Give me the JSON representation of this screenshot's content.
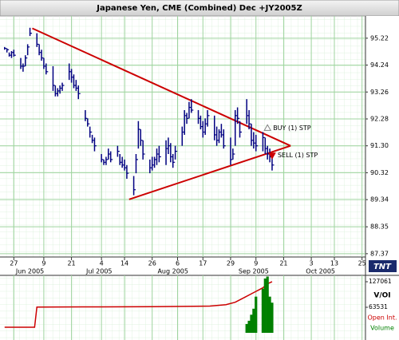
{
  "chart_data": [
    {
      "type": "hlc",
      "title": "Japanese Yen, CME (Combined) Dec +JY2005Z",
      "color": "#000080",
      "grid": true,
      "xlim": [
        -6,
        152.5
      ],
      "ylim": [
        87.25,
        96.03
      ],
      "xticks": [
        {
          "value": 0,
          "label": "27"
        },
        {
          "value": 13,
          "label": "9"
        },
        {
          "value": 25,
          "label": "21"
        },
        {
          "value": 38,
          "label": "4"
        },
        {
          "value": 48,
          "label": "14"
        },
        {
          "value": 60,
          "label": "26"
        },
        {
          "value": 71,
          "label": "6"
        },
        {
          "value": 82,
          "label": "17"
        },
        {
          "value": 94,
          "label": "29"
        },
        {
          "value": 105,
          "label": "9"
        },
        {
          "value": 117,
          "label": "21"
        },
        {
          "value": 129,
          "label": "3"
        },
        {
          "value": 139,
          "label": "13"
        },
        {
          "value": 151,
          "label": "25"
        }
      ],
      "month_ticks": [
        {
          "value": 7,
          "label": "Jun 2005"
        },
        {
          "value": 37,
          "label": "Jul 2005"
        },
        {
          "value": 69,
          "label": "Aug 2005"
        },
        {
          "value": 104,
          "label": "Sep 2005"
        },
        {
          "value": 133,
          "label": "Oct 2005"
        }
      ],
      "yticks": [
        95.22,
        94.24,
        93.26,
        92.28,
        {
          "value": 91.3,
          "label": "91.30"
        },
        90.32,
        89.34,
        88.35,
        87.37
      ],
      "x": [
        -4,
        -3,
        -2,
        -1,
        0,
        3,
        4,
        5,
        6,
        7,
        10,
        11,
        12,
        13,
        14,
        17,
        18,
        19,
        20,
        21,
        24,
        25,
        26,
        27,
        28,
        31,
        32,
        33,
        34,
        35,
        38,
        39,
        40,
        41,
        42,
        45,
        46,
        47,
        48,
        49,
        52,
        53,
        54,
        55,
        56,
        59,
        60,
        61,
        62,
        63,
        66,
        67,
        68,
        69,
        70,
        73,
        74,
        75,
        76,
        77,
        80,
        81,
        82,
        83,
        84,
        87,
        88,
        89,
        90,
        91,
        94,
        95,
        96,
        97,
        98,
        101,
        102,
        103,
        104,
        105,
        108,
        109,
        110,
        111,
        112
      ],
      "high": [
        94.9,
        94.85,
        94.7,
        94.75,
        94.8,
        94.5,
        94.3,
        94.6,
        95.0,
        95.6,
        95.4,
        95.0,
        94.8,
        94.5,
        94.3,
        94.2,
        93.5,
        93.4,
        93.5,
        93.6,
        94.3,
        94.1,
        93.9,
        93.7,
        93.5,
        92.6,
        92.3,
        92.0,
        91.7,
        91.6,
        91.0,
        90.8,
        90.9,
        91.2,
        91.1,
        91.3,
        91.0,
        90.9,
        90.8,
        90.6,
        90.2,
        91.0,
        92.2,
        91.9,
        91.5,
        90.8,
        90.9,
        90.9,
        91.2,
        91.3,
        91.5,
        91.6,
        91.4,
        91.0,
        91.3,
        92.0,
        92.6,
        92.5,
        92.9,
        93.0,
        92.6,
        92.4,
        92.2,
        92.3,
        92.6,
        92.4,
        92.0,
        91.9,
        92.1,
        91.9,
        91.6,
        91.2,
        92.6,
        92.7,
        92.2,
        93.0,
        92.6,
        92.1,
        91.8,
        91.7,
        91.8,
        91.6,
        91.3,
        91.2,
        91.0
      ],
      "low": [
        94.8,
        94.7,
        94.55,
        94.5,
        94.55,
        94.1,
        94.0,
        94.2,
        94.6,
        95.3,
        94.9,
        94.6,
        94.4,
        94.1,
        93.9,
        93.3,
        93.1,
        93.1,
        93.2,
        93.3,
        93.7,
        93.6,
        93.4,
        93.3,
        93.0,
        92.2,
        92.0,
        91.6,
        91.4,
        91.1,
        90.7,
        90.6,
        90.6,
        90.8,
        90.7,
        90.9,
        90.6,
        90.5,
        90.4,
        90.1,
        89.5,
        90.3,
        91.2,
        91.3,
        90.8,
        90.3,
        90.4,
        90.5,
        90.6,
        90.7,
        90.6,
        91.0,
        90.7,
        90.5,
        90.8,
        91.3,
        91.7,
        92.1,
        92.3,
        92.5,
        92.1,
        91.9,
        91.6,
        91.7,
        92.0,
        91.5,
        91.3,
        91.4,
        91.6,
        91.2,
        90.6,
        90.8,
        91.3,
        92.1,
        91.6,
        92.1,
        91.9,
        91.3,
        91.2,
        91.1,
        91.1,
        91.0,
        90.8,
        90.7,
        90.4
      ],
      "close": [
        94.85,
        94.8,
        94.6,
        94.7,
        94.6,
        94.2,
        94.2,
        94.5,
        94.9,
        95.4,
        95.0,
        94.7,
        94.5,
        94.2,
        94.0,
        93.5,
        93.2,
        93.3,
        93.4,
        93.5,
        94.0,
        93.8,
        93.5,
        93.4,
        93.2,
        92.3,
        92.1,
        91.8,
        91.5,
        91.3,
        90.8,
        90.7,
        90.8,
        91.0,
        90.8,
        91.1,
        90.7,
        90.6,
        90.5,
        90.3,
        89.7,
        90.8,
        91.9,
        91.5,
        91.0,
        90.5,
        90.6,
        90.8,
        91.0,
        90.9,
        91.2,
        91.3,
        90.9,
        90.7,
        91.1,
        91.8,
        92.4,
        92.3,
        92.7,
        92.6,
        92.3,
        92.0,
        91.8,
        92.1,
        92.4,
        91.7,
        91.5,
        91.8,
        91.7,
        91.3,
        90.8,
        91.0,
        92.4,
        92.3,
        91.8,
        92.4,
        92.1,
        91.5,
        91.4,
        91.3,
        91.6,
        91.2,
        91.0,
        90.9,
        90.6
      ],
      "trendline_color": "#cc0000",
      "trendlines": [
        {
          "x": [
            8,
            120
          ],
          "y": [
            95.58,
            91.3
          ]
        },
        {
          "x": [
            50,
            120
          ],
          "y": [
            89.35,
            91.3
          ]
        }
      ],
      "annotations": [
        {
          "text": "BUY (1) STP",
          "x": 110,
          "y": 91.95,
          "marker": "up",
          "color": "#808080"
        },
        {
          "text": "SELL (1) STP",
          "x": 112,
          "y": 90.95,
          "marker": "down",
          "color": "#cc0000"
        }
      ]
    },
    {
      "type": "volume_oi",
      "label": "V/OI",
      "logo": "TNT",
      "vlim": [
        0,
        142940
      ],
      "vticks": [
        63531,
        127061
      ],
      "series": [
        {
          "name": "Open Int.",
          "color": "#cc0000",
          "kind": "line",
          "x": [
            -4,
            9,
            10,
            30,
            60,
            85,
            92,
            96,
            100,
            104,
            108,
            110,
            112
          ],
          "values": [
            14000,
            14000,
            64000,
            64500,
            65000,
            66500,
            70000,
            76000,
            88000,
            100000,
            112000,
            122000,
            127061
          ]
        },
        {
          "name": "Volume",
          "color": "#008000",
          "kind": "bar",
          "x": [
            101,
            102,
            103,
            104,
            105,
            108,
            109,
            110,
            111,
            112
          ],
          "values": [
            22000,
            30000,
            45000,
            60000,
            90000,
            110000,
            135000,
            140000,
            90000,
            75000
          ]
        }
      ]
    }
  ]
}
